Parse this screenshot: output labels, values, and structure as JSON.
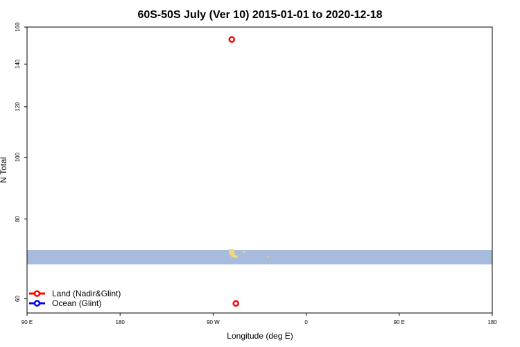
{
  "chart_data": {
    "type": "scatter",
    "title": "60S-50S July (Ver 10)   2015-01-01 to 2020-12-18",
    "xlabel": "Longitude (deg E)",
    "ylabel": "N Total",
    "x_ticks": [
      {
        "value": 90,
        "label": "90 E"
      },
      {
        "value": 180,
        "label": "180"
      },
      {
        "value": 270,
        "label": "90 W"
      },
      {
        "value": 360,
        "label": "0"
      },
      {
        "value": 450,
        "label": "90 E"
      },
      {
        "value": 540,
        "label": "180"
      }
    ],
    "xlim": [
      90,
      540
    ],
    "y_ticks": [
      60,
      80,
      100,
      120,
      140,
      160
    ],
    "ylim": [
      57,
      160
    ],
    "y_scale": "log",
    "grid": false,
    "legend_position": "bottom-left",
    "series": [
      {
        "name": "Land (Nadir&Glint)",
        "color": "#ff0000",
        "points": [
          {
            "x": 288,
            "y": 153
          },
          {
            "x": 292,
            "y": 59
          }
        ]
      },
      {
        "name": "Ocean (Glint)",
        "color": "#0000ff",
        "points": []
      }
    ],
    "map_strip": {
      "ocean_color": "#a7bcdc",
      "land_color": "#f5d47a"
    }
  }
}
